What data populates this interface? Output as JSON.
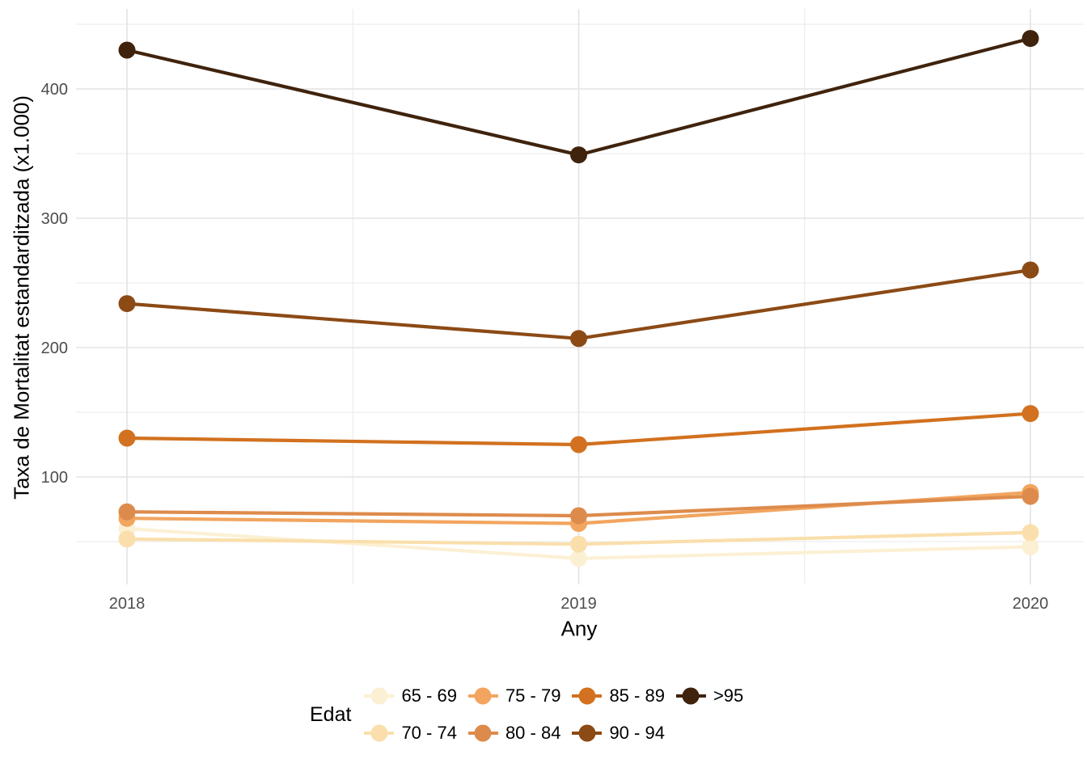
{
  "chart_data": {
    "type": "line",
    "title": "",
    "xlabel": "Any",
    "ylabel": "Taxa de Mortalitat estandarditzada (x1.000)",
    "legend_title": "Edat",
    "legend_position": "bottom",
    "legend_rows": 2,
    "x": [
      2018,
      2019,
      2020
    ],
    "x_tick_labels": [
      "2018",
      "2019",
      "2020"
    ],
    "y_ticks": [
      100,
      200,
      300,
      400
    ],
    "y_minor_ticks": [
      50,
      150,
      250,
      350,
      450
    ],
    "xlim": [
      2017.9,
      2020.1
    ],
    "ylim": [
      16,
      460
    ],
    "grid": "major horizontal/vertical light gray, minor at midpoints, white background",
    "series": [
      {
        "name": "65 - 69",
        "color": "#FCF0D4",
        "values": [
          60,
          37,
          46
        ]
      },
      {
        "name": "70 - 74",
        "color": "#FADFAC",
        "values": [
          52,
          48,
          57
        ]
      },
      {
        "name": "75 - 79",
        "color": "#F2A55F",
        "values": [
          68,
          64,
          88
        ]
      },
      {
        "name": "80 - 84",
        "color": "#DD8B4C",
        "values": [
          73,
          70,
          85
        ]
      },
      {
        "name": "85 - 89",
        "color": "#D2711F",
        "values": [
          130,
          125,
          149
        ]
      },
      {
        "name": "90 - 94",
        "color": "#8C4A15",
        "values": [
          234,
          207,
          260
        ]
      },
      {
        "name": ">95",
        "color": "#3F230D",
        "values": [
          430,
          349,
          439
        ]
      }
    ],
    "colors": {
      "background": "#FFFFFF",
      "tick_label": "#4D4D4D",
      "axis_title": "#000000",
      "grid_major": "#E3E3E3",
      "grid_minor": "#EDEDED"
    }
  }
}
